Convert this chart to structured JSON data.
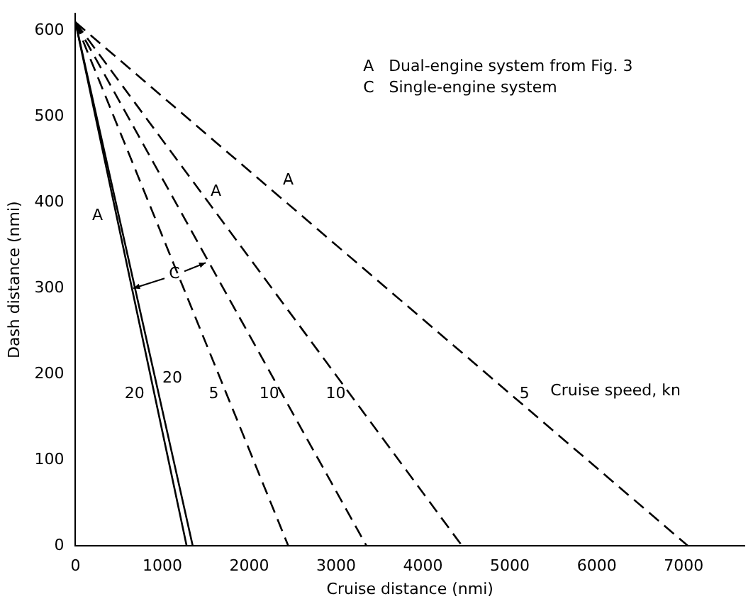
{
  "chart_data": {
    "type": "line",
    "xlabel": "Cruise distance (nmi)",
    "ylabel": "Dash distance (nmi)",
    "xlim": [
      0,
      7700
    ],
    "xticks": [
      0,
      1000,
      2000,
      3000,
      4000,
      5000,
      6000,
      7000
    ],
    "ylim": [
      0,
      620
    ],
    "yticks": [
      0,
      100,
      200,
      300,
      400,
      500,
      600
    ],
    "grid": false,
    "legend": false,
    "marker": "none",
    "series": [
      {
        "name": "20",
        "color": "#000000",
        "x": [
          0,
          1280
        ],
        "values": [
          610,
          0
        ],
        "line_style": "solid"
      },
      {
        "name": "20",
        "color": "#000000",
        "x": [
          0,
          1350
        ],
        "values": [
          610,
          0
        ],
        "line_style": "solid"
      },
      {
        "name": "5",
        "color": "#000000",
        "x": [
          0,
          2450
        ],
        "values": [
          610,
          0
        ],
        "line_style": "dashed"
      },
      {
        "name": "10",
        "color": "#000000",
        "x": [
          0,
          3350
        ],
        "values": [
          610,
          0
        ],
        "line_style": "dashed"
      },
      {
        "name": "10",
        "color": "#000000",
        "x": [
          0,
          4450
        ],
        "values": [
          610,
          0
        ],
        "line_style": "dashed"
      },
      {
        "name": "5",
        "color": "#000000",
        "x": [
          0,
          7050
        ],
        "values": [
          610,
          0
        ],
        "line_style": "dashed"
      }
    ],
    "annotations": [
      "A   Dual-engine system from Fig. 3",
      "C   Single-engine system",
      "Cruise speed, kn",
      "A",
      "A",
      "A",
      {
        "text": "C",
        "x": 650,
        "y": 300
      }
    ]
  }
}
